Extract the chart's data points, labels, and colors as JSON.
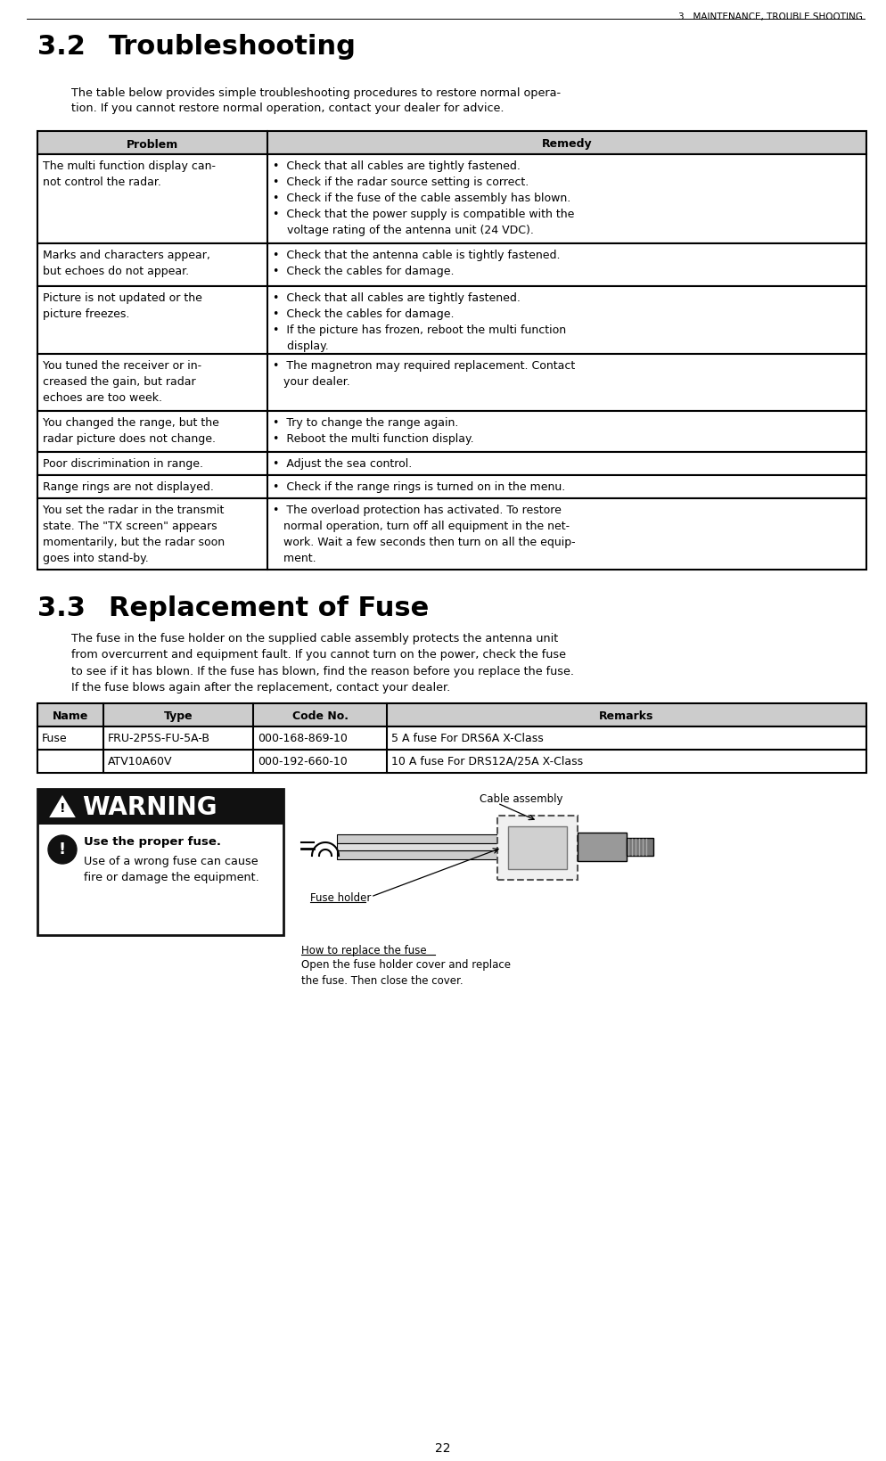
{
  "page_header": "3.  MAINTENANCE, TROUBLE SHOOTING",
  "section_32_num": "3.2",
  "section_32_title": "Troubleshooting",
  "section_32_intro1": "The table below provides simple troubleshooting procedures to restore normal opera-",
  "section_32_intro2": "tion. If you cannot restore normal operation, contact your dealer for advice.",
  "trouble_table_header": [
    "Problem",
    "Remedy"
  ],
  "trouble_rows": [
    {
      "problem": "The multi function display can-\nnot control the radar.",
      "remedy": "•  Check that all cables are tightly fastened.\n•  Check if the radar source setting is correct.\n•  Check if the fuse of the cable assembly has blown.\n•  Check that the power supply is compatible with the\n    voltage rating of the antenna unit (24 VDC).",
      "rh": 100
    },
    {
      "problem": "Marks and characters appear,\nbut echoes do not appear.",
      "remedy": "•  Check that the antenna cable is tightly fastened.\n•  Check the cables for damage.",
      "rh": 48
    },
    {
      "problem": "Picture is not updated or the\npicture freezes.",
      "remedy": "•  Check that all cables are tightly fastened.\n•  Check the cables for damage.\n•  If the picture has frozen, reboot the multi function\n    display.",
      "rh": 76
    },
    {
      "problem": "You tuned the receiver or in-\ncreased the gain, but radar\nechoes are too week.",
      "remedy": "•  The magnetron may required replacement. Contact\n   your dealer.",
      "rh": 64
    },
    {
      "problem": "You changed the range, but the\nradar picture does not change.",
      "remedy": "•  Try to change the range again.\n•  Reboot the multi function display.",
      "rh": 46
    },
    {
      "problem": "Poor discrimination in range.",
      "remedy": "•  Adjust the sea control.",
      "rh": 26
    },
    {
      "problem": "Range rings are not displayed.",
      "remedy": "•  Check if the range rings is turned on in the menu.",
      "rh": 26
    },
    {
      "problem": "You set the radar in the transmit\nstate. The \"TX screen\" appears\nmomentarily, but the radar soon\ngoes into stand-by.",
      "remedy": "•  The overload protection has activated. To restore\n   normal operation, turn off all equipment in the net-\n   work. Wait a few seconds then turn on all the equip-\n   ment.",
      "rh": 80
    }
  ],
  "section_33_num": "3.3",
  "section_33_title": "Replacement of Fuse",
  "section_33_intro": "The fuse in the fuse holder on the supplied cable assembly protects the antenna unit\nfrom overcurrent and equipment fault. If you cannot turn on the power, check the fuse\nto see if it has blown. If the fuse has blown, find the reason before you replace the fuse.\nIf the fuse blows again after the replacement, contact your dealer.",
  "fuse_table_header": [
    "Name",
    "Type",
    "Code No.",
    "Remarks"
  ],
  "fuse_rows": [
    [
      "Fuse",
      "FRU-2P5S-FU-5A-B",
      "000-168-869-10",
      "5 A fuse For DRS6A X-Class"
    ],
    [
      "",
      "ATV10A60V",
      "000-192-660-10",
      "10 A fuse For DRS12A/25A X-Class"
    ]
  ],
  "warning_title": "WARNING",
  "warning_bold": "Use the proper fuse.",
  "warning_body": "Use of a wrong fuse can cause\nfire or damage the equipment.",
  "cable_label": "Cable assembly",
  "fuse_holder_label": "Fuse holder",
  "how_to_title": "How to replace the fuse",
  "how_to_body": "Open the fuse holder cover and replace\nthe fuse. Then close the cover.",
  "page_number": "22"
}
